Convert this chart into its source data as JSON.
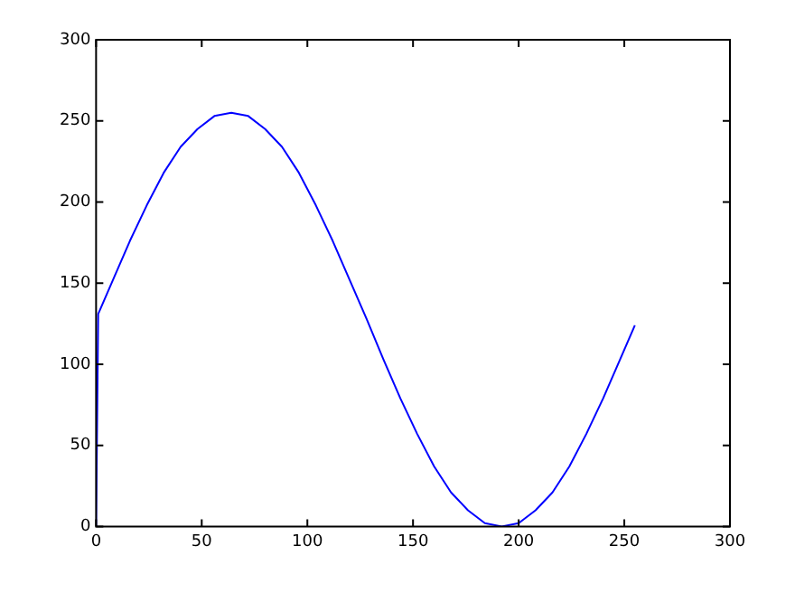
{
  "chart_data": {
    "type": "line",
    "x": [
      0,
      1,
      8,
      16,
      24,
      32,
      40,
      48,
      56,
      64,
      72,
      80,
      88,
      96,
      104,
      112,
      120,
      128,
      136,
      144,
      152,
      160,
      168,
      176,
      184,
      192,
      200,
      208,
      216,
      224,
      232,
      240,
      248,
      255
    ],
    "series": [
      {
        "color": "#0000ff",
        "values": [
          0,
          131,
          152,
          176,
          198,
          218,
          234,
          245,
          253,
          255,
          253,
          245,
          234,
          218,
          198,
          176,
          152,
          128,
          103,
          79,
          57,
          37,
          21,
          10,
          2,
          0,
          2,
          10,
          21,
          37,
          57,
          79,
          103,
          124
        ]
      }
    ],
    "xlim": [
      0,
      300
    ],
    "xticks": [
      0,
      50,
      100,
      150,
      200,
      250,
      300
    ],
    "ylim": [
      0,
      300
    ],
    "yticks": [
      0,
      50,
      100,
      150,
      200,
      250,
      300
    ],
    "grid": false,
    "legend": false,
    "marker": "none",
    "line_style": "solid"
  }
}
